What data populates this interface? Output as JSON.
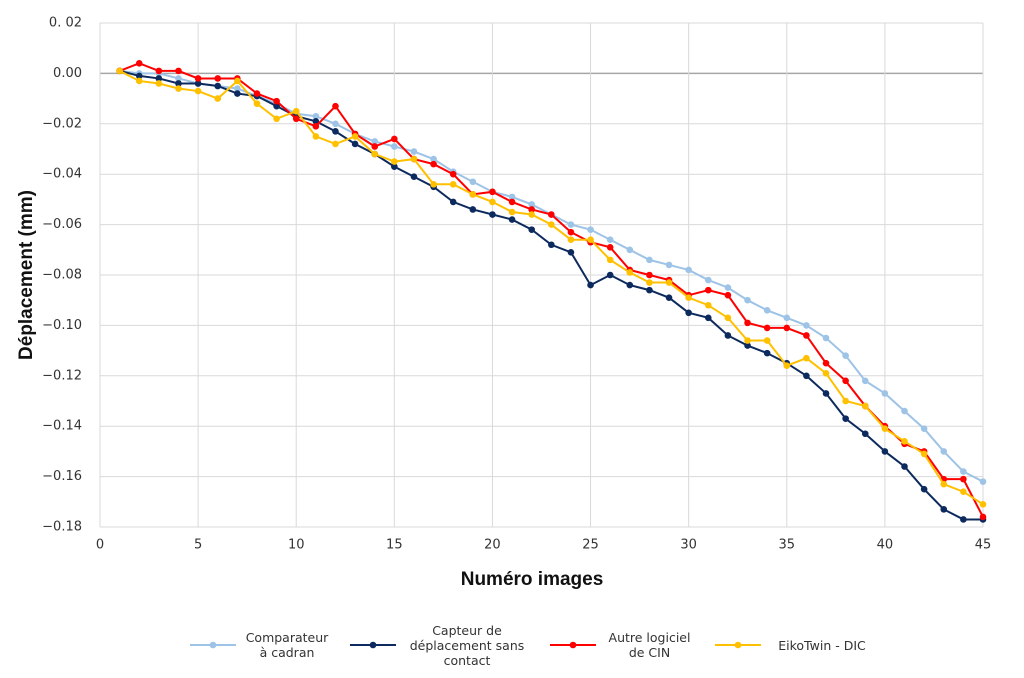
{
  "chart_data": {
    "type": "line",
    "xlabel": "Numéro images",
    "ylabel": "Déplacement (mm)",
    "x": [
      1,
      2,
      3,
      4,
      5,
      6,
      7,
      8,
      9,
      10,
      11,
      12,
      13,
      14,
      15,
      16,
      17,
      18,
      19,
      20,
      21,
      22,
      23,
      24,
      25,
      26,
      27,
      28,
      29,
      30,
      31,
      32,
      33,
      34,
      35,
      36,
      37,
      38,
      39,
      40,
      41,
      42,
      43,
      44,
      45
    ],
    "series": [
      {
        "name": "Comparateur à cadran",
        "color": "#9dc3e6",
        "values": [
          0.001,
          0,
          0,
          -0.002,
          -0.004,
          -0.005,
          -0.006,
          -0.009,
          -0.012,
          -0.016,
          -0.017,
          -0.02,
          -0.024,
          -0.027,
          -0.029,
          -0.031,
          -0.034,
          -0.039,
          -0.043,
          -0.047,
          -0.049,
          -0.052,
          -0.056,
          -0.06,
          -0.062,
          -0.066,
          -0.07,
          -0.074,
          -0.076,
          -0.078,
          -0.082,
          -0.085,
          -0.09,
          -0.094,
          -0.097,
          -0.1,
          -0.105,
          -0.112,
          -0.122,
          -0.127,
          -0.134,
          -0.141,
          -0.15,
          -0.158,
          -0.162
        ]
      },
      {
        "name": "Capteur de déplacement sans contact",
        "color": "#0d2a5e",
        "values": [
          0.001,
          -0.001,
          -0.002,
          -0.004,
          -0.004,
          -0.005,
          -0.008,
          -0.009,
          -0.013,
          -0.017,
          -0.019,
          -0.023,
          -0.028,
          -0.032,
          -0.037,
          -0.041,
          -0.045,
          -0.051,
          -0.054,
          -0.056,
          -0.058,
          -0.062,
          -0.068,
          -0.071,
          -0.084,
          -0.08,
          -0.084,
          -0.086,
          -0.089,
          -0.095,
          -0.097,
          -0.104,
          -0.108,
          -0.111,
          -0.115,
          -0.12,
          -0.127,
          -0.137,
          -0.143,
          -0.15,
          -0.156,
          -0.165,
          -0.173,
          -0.177,
          -0.177
        ]
      },
      {
        "name": "Autre logiciel de CIN",
        "color": "#ff0000",
        "values": [
          0.001,
          0.004,
          0.001,
          0.001,
          -0.002,
          -0.002,
          -0.002,
          -0.008,
          -0.011,
          -0.018,
          -0.021,
          -0.013,
          -0.024,
          -0.029,
          -0.026,
          -0.034,
          -0.036,
          -0.04,
          -0.048,
          -0.047,
          -0.051,
          -0.054,
          -0.056,
          -0.063,
          -0.067,
          -0.069,
          -0.078,
          -0.08,
          -0.082,
          -0.088,
          -0.086,
          -0.088,
          -0.099,
          -0.101,
          -0.101,
          -0.104,
          -0.115,
          -0.122,
          -0.132,
          -0.14,
          -0.147,
          -0.15,
          -0.161,
          -0.161,
          -0.176
        ]
      },
      {
        "name": "EikoTwin - DIC",
        "color": "#ffc000",
        "values": [
          0.001,
          -0.003,
          -0.004,
          -0.006,
          -0.007,
          -0.01,
          -0.003,
          -0.012,
          -0.018,
          -0.015,
          -0.025,
          -0.028,
          -0.025,
          -0.032,
          -0.035,
          -0.034,
          -0.044,
          -0.044,
          -0.048,
          -0.051,
          -0.055,
          -0.056,
          -0.06,
          -0.066,
          -0.066,
          -0.074,
          -0.079,
          -0.083,
          -0.083,
          -0.089,
          -0.092,
          -0.097,
          -0.106,
          -0.106,
          -0.116,
          -0.113,
          -0.119,
          -0.13,
          -0.132,
          -0.141,
          -0.146,
          -0.151,
          -0.163,
          -0.166,
          -0.171
        ]
      }
    ],
    "xlim": [
      0,
      45
    ],
    "xticks": [
      0,
      5,
      10,
      15,
      20,
      25,
      30,
      35,
      40,
      45
    ],
    "ylim": [
      -0.18,
      0.02
    ],
    "yticks": [
      {
        "value": 0.02,
        "label": "0. 02"
      },
      {
        "value": 0,
        "label": "0.00"
      },
      {
        "value": -0.02,
        "label": "−0.02"
      },
      {
        "value": -0.04,
        "label": "−0.04"
      },
      {
        "value": -0.06,
        "label": "−0.06"
      },
      {
        "value": -0.08,
        "label": "−0.08"
      },
      {
        "value": -0.1,
        "label": "−0.10"
      },
      {
        "value": -0.12,
        "label": "−0.12"
      },
      {
        "value": -0.14,
        "label": "−0.14"
      },
      {
        "value": -0.16,
        "label": "−0.16"
      },
      {
        "value": -0.18,
        "label": "−0.18"
      }
    ],
    "grid": true,
    "legend": "bottom"
  }
}
